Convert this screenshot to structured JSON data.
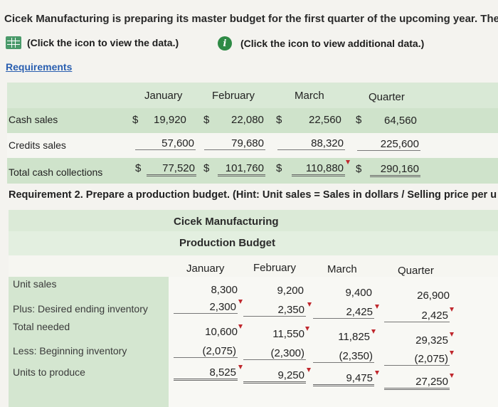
{
  "intro_text": "Cicek Manufacturing is preparing its master budget for the first quarter of the upcoming year. The",
  "data_link": {
    "icon": "grid-icon",
    "label": "(Click the icon to view the data.)"
  },
  "info_link": {
    "icon": "info-icon",
    "label": "(Click the icon to view additional data.)"
  },
  "requirements_link": "Requirements",
  "collections": {
    "headers": [
      "January",
      "February",
      "March",
      "Quarter"
    ],
    "rows": [
      {
        "label": "Cash sales",
        "values": [
          "19,920",
          "22,080",
          "22,560",
          "64,560"
        ]
      },
      {
        "label": "Credits sales",
        "values": [
          "57,600",
          "79,680",
          "88,320",
          "225,600"
        ]
      },
      {
        "label": "Total cash collections",
        "values": [
          "77,520",
          "101,760",
          "110,880",
          "290,160"
        ]
      }
    ],
    "currency": "$"
  },
  "requirement2": "Requirement 2. Prepare a production budget. (Hint: Unit sales = Sales in dollars / Selling price per u",
  "production": {
    "company": "Cicek Manufacturing",
    "title": "Production Budget",
    "headers": [
      "January",
      "February",
      "March",
      "Quarter"
    ],
    "rows": [
      {
        "label": "Unit sales",
        "values": [
          "8,300",
          "9,200",
          "9,400",
          "26,900"
        ]
      },
      {
        "label": "Plus: Desired ending inventory",
        "values": [
          "2,300",
          "2,350",
          "2,425",
          "2,425"
        ]
      },
      {
        "label": "Total needed",
        "values": [
          "10,600",
          "11,550",
          "11,825",
          "29,325"
        ]
      },
      {
        "label": "Less: Beginning inventory",
        "values": [
          "(2,075)",
          "(2,300)",
          "(2,350)",
          "(2,075)"
        ]
      },
      {
        "label": "Units to produce",
        "values": [
          "8,525",
          "9,250",
          "9,475",
          "27,250"
        ]
      }
    ]
  },
  "colors": {
    "accent_green": "#cfe3cb",
    "link_blue": "#2a5fb0",
    "marker_red": "#c0282e"
  }
}
